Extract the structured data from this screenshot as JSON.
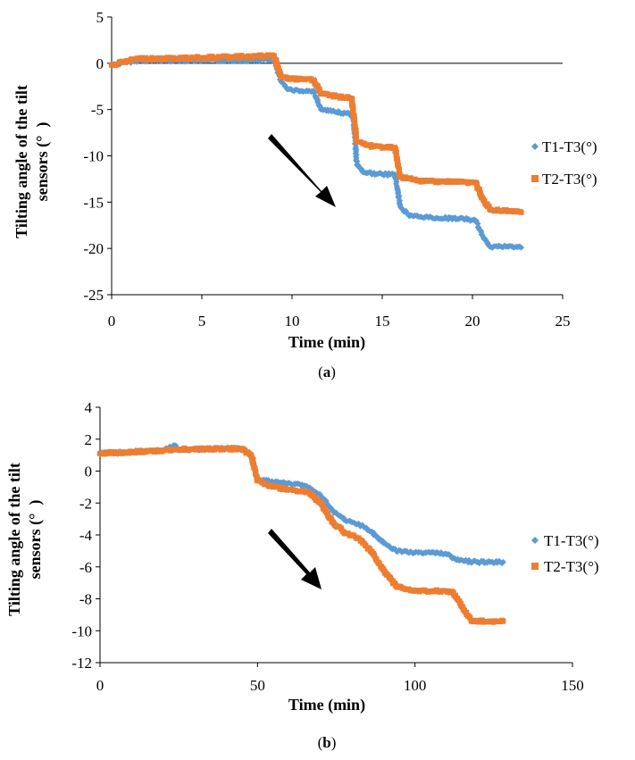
{
  "colors": {
    "t1": "#5b9bd5",
    "t2": "#ed7d31",
    "axis": "#000000",
    "arrow": "#000000"
  },
  "chart_data": [
    {
      "type": "scatter",
      "panel": "a",
      "caption_letter": "a",
      "xlabel": "Time (min)",
      "ylabel_line1": "Tilting angle of the tilt",
      "ylabel_line2": "sensors (°  )",
      "xlim": [
        0,
        25
      ],
      "ylim": [
        -25,
        5
      ],
      "xticks": [
        0,
        5,
        10,
        15,
        20,
        25
      ],
      "yticks": [
        5,
        0,
        -5,
        -10,
        -15,
        -20,
        -25
      ],
      "legend_position": "right",
      "annotation": "arrow pointing downward along trend",
      "series": [
        {
          "name": "T1-T3(°)",
          "marker": "diamond",
          "points": [
            [
              0,
              -0.2
            ],
            [
              0.8,
              0.1
            ],
            [
              1.5,
              0.3
            ],
            [
              3,
              0.3
            ],
            [
              5,
              0.3
            ],
            [
              7,
              0.3
            ],
            [
              9,
              0.4
            ],
            [
              9.4,
              -2.0
            ],
            [
              9.8,
              -2.8
            ],
            [
              10.5,
              -3.0
            ],
            [
              11.2,
              -3.0
            ],
            [
              11.6,
              -5.0
            ],
            [
              12.2,
              -5.2
            ],
            [
              13,
              -5.4
            ],
            [
              13.4,
              -5.6
            ],
            [
              13.6,
              -11.0
            ],
            [
              14,
              -11.8
            ],
            [
              15,
              -12.0
            ],
            [
              15.7,
              -12.0
            ],
            [
              16,
              -15.5
            ],
            [
              16.5,
              -16.5
            ],
            [
              18,
              -16.7
            ],
            [
              19.5,
              -16.8
            ],
            [
              20.2,
              -17.0
            ],
            [
              20.5,
              -18.5
            ],
            [
              21,
              -19.8
            ],
            [
              22,
              -19.8
            ],
            [
              22.7,
              -19.9
            ]
          ]
        },
        {
          "name": "T2-T3(°)",
          "marker": "square",
          "points": [
            [
              0,
              -0.2
            ],
            [
              0.8,
              0.2
            ],
            [
              1.5,
              0.5
            ],
            [
              3,
              0.5
            ],
            [
              5,
              0.6
            ],
            [
              7,
              0.7
            ],
            [
              9,
              0.8
            ],
            [
              9.4,
              -1.5
            ],
            [
              10,
              -1.7
            ],
            [
              11.2,
              -1.8
            ],
            [
              11.6,
              -3.3
            ],
            [
              12.5,
              -3.6
            ],
            [
              13.3,
              -3.8
            ],
            [
              13.6,
              -8.5
            ],
            [
              14.5,
              -9.0
            ],
            [
              15.7,
              -9.1
            ],
            [
              16,
              -12.3
            ],
            [
              17,
              -12.7
            ],
            [
              19,
              -12.8
            ],
            [
              20.2,
              -12.9
            ],
            [
              20.5,
              -14.5
            ],
            [
              21,
              -15.8
            ],
            [
              22,
              -16.0
            ],
            [
              22.7,
              -16.1
            ]
          ]
        }
      ]
    },
    {
      "type": "scatter",
      "panel": "b",
      "caption_letter": "b",
      "xlabel": "Time (min)",
      "ylabel_line1": "Tilting angle of the tilt",
      "ylabel_line2": "sensors (°  )",
      "xlim": [
        0,
        150
      ],
      "ylim": [
        -12,
        4
      ],
      "xticks": [
        0,
        50,
        100,
        150
      ],
      "yticks": [
        4,
        2,
        0,
        -2,
        -4,
        -6,
        -8,
        -10,
        -12
      ],
      "legend_position": "right",
      "annotation": "arrow pointing downward along trend",
      "series": [
        {
          "name": "T1-T3(°)",
          "marker": "diamond",
          "points": [
            [
              0,
              1.1
            ],
            [
              10,
              1.2
            ],
            [
              20,
              1.3
            ],
            [
              24,
              1.6
            ],
            [
              25,
              1.3
            ],
            [
              35,
              1.4
            ],
            [
              45,
              1.4
            ],
            [
              48,
              1.0
            ],
            [
              50,
              -0.5
            ],
            [
              55,
              -0.7
            ],
            [
              62,
              -0.8
            ],
            [
              66,
              -1.0
            ],
            [
              70,
              -1.5
            ],
            [
              74,
              -2.5
            ],
            [
              78,
              -3.1
            ],
            [
              82,
              -3.3
            ],
            [
              86,
              -3.8
            ],
            [
              90,
              -4.5
            ],
            [
              94,
              -5.0
            ],
            [
              100,
              -5.1
            ],
            [
              106,
              -5.1
            ],
            [
              110,
              -5.2
            ],
            [
              114,
              -5.6
            ],
            [
              120,
              -5.7
            ],
            [
              128,
              -5.7
            ]
          ]
        },
        {
          "name": "T2-T3(°)",
          "marker": "square",
          "points": [
            [
              0,
              1.1
            ],
            [
              10,
              1.2
            ],
            [
              20,
              1.3
            ],
            [
              30,
              1.4
            ],
            [
              45,
              1.4
            ],
            [
              48,
              1.0
            ],
            [
              50,
              -0.6
            ],
            [
              55,
              -1.0
            ],
            [
              62,
              -1.2
            ],
            [
              66,
              -1.3
            ],
            [
              70,
              -2.0
            ],
            [
              74,
              -3.2
            ],
            [
              78,
              -3.9
            ],
            [
              82,
              -4.2
            ],
            [
              86,
              -5.0
            ],
            [
              90,
              -6.2
            ],
            [
              94,
              -7.2
            ],
            [
              100,
              -7.5
            ],
            [
              106,
              -7.5
            ],
            [
              112,
              -7.6
            ],
            [
              115,
              -8.5
            ],
            [
              118,
              -9.4
            ],
            [
              124,
              -9.4
            ],
            [
              128,
              -9.4
            ]
          ]
        }
      ]
    }
  ]
}
